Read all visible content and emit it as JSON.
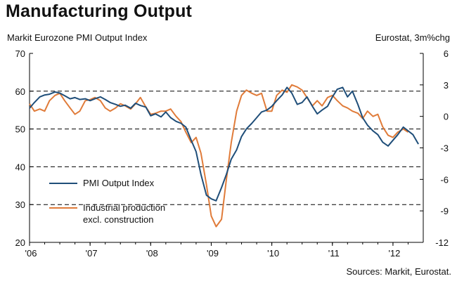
{
  "header": {
    "title": "Manufacturing Output",
    "left_axis_title": "Markit Eurozone PMI Output Index",
    "right_axis_title": "Eurostat, 3m%chg",
    "source": "Sources: Markit, Eurostat."
  },
  "colors": {
    "pmi": "#1f4e79",
    "industrial": "#e07b39",
    "axis": "#000000",
    "grid": "#000000"
  },
  "chart_data": {
    "type": "line",
    "x_ticks": [
      "'06",
      "'07",
      "'08",
      "'09",
      "'10",
      "'11",
      "'12"
    ],
    "x_range": [
      2006.0,
      2012.5
    ],
    "y_left": {
      "range": [
        20,
        70
      ],
      "ticks": [
        20,
        30,
        40,
        50,
        60,
        70
      ]
    },
    "y_right": {
      "range": [
        -12,
        6
      ],
      "ticks": [
        -12,
        -9,
        -6,
        -3,
        0,
        3,
        6
      ]
    },
    "gridlines_left": [
      30,
      40,
      50,
      60
    ],
    "legend": [
      {
        "key": "pmi",
        "lines": [
          "PMI Output Index"
        ]
      },
      {
        "key": "industrial",
        "lines": [
          "Industrial production",
          "excl. construction"
        ]
      }
    ],
    "series": [
      {
        "name": "PMI Output Index",
        "axis": "left",
        "points": [
          [
            2006.0,
            55.5
          ],
          [
            2006.08,
            57.0
          ],
          [
            2006.17,
            58.5
          ],
          [
            2006.25,
            59.0
          ],
          [
            2006.33,
            59.2
          ],
          [
            2006.42,
            59.8
          ],
          [
            2006.5,
            59.5
          ],
          [
            2006.58,
            58.8
          ],
          [
            2006.67,
            58.0
          ],
          [
            2006.75,
            58.3
          ],
          [
            2006.83,
            57.8
          ],
          [
            2006.92,
            58.0
          ],
          [
            2007.0,
            57.5
          ],
          [
            2007.08,
            58.0
          ],
          [
            2007.17,
            58.5
          ],
          [
            2007.25,
            57.8
          ],
          [
            2007.33,
            57.0
          ],
          [
            2007.42,
            56.5
          ],
          [
            2007.5,
            56.0
          ],
          [
            2007.58,
            56.3
          ],
          [
            2007.67,
            55.5
          ],
          [
            2007.75,
            56.8
          ],
          [
            2007.83,
            56.2
          ],
          [
            2007.92,
            55.8
          ],
          [
            2008.0,
            53.5
          ],
          [
            2008.08,
            54.0
          ],
          [
            2008.17,
            53.2
          ],
          [
            2008.25,
            54.5
          ],
          [
            2008.33,
            53.0
          ],
          [
            2008.42,
            52.0
          ],
          [
            2008.5,
            51.5
          ],
          [
            2008.58,
            50.5
          ],
          [
            2008.67,
            47.0
          ],
          [
            2008.75,
            44.0
          ],
          [
            2008.83,
            38.0
          ],
          [
            2008.92,
            32.5
          ],
          [
            2009.0,
            31.5
          ],
          [
            2009.08,
            31.0
          ],
          [
            2009.17,
            34.5
          ],
          [
            2009.25,
            38.0
          ],
          [
            2009.33,
            42.0
          ],
          [
            2009.42,
            44.5
          ],
          [
            2009.5,
            48.0
          ],
          [
            2009.58,
            50.0
          ],
          [
            2009.67,
            51.5
          ],
          [
            2009.75,
            53.0
          ],
          [
            2009.83,
            54.5
          ],
          [
            2009.92,
            55.0
          ],
          [
            2010.0,
            56.0
          ],
          [
            2010.08,
            57.5
          ],
          [
            2010.17,
            59.0
          ],
          [
            2010.25,
            61.0
          ],
          [
            2010.33,
            59.5
          ],
          [
            2010.42,
            56.5
          ],
          [
            2010.5,
            57.0
          ],
          [
            2010.58,
            58.5
          ],
          [
            2010.67,
            56.0
          ],
          [
            2010.75,
            54.0
          ],
          [
            2010.83,
            55.0
          ],
          [
            2010.92,
            56.0
          ],
          [
            2011.0,
            58.5
          ],
          [
            2011.08,
            60.5
          ],
          [
            2011.17,
            61.0
          ],
          [
            2011.25,
            58.5
          ],
          [
            2011.33,
            60.0
          ],
          [
            2011.42,
            56.5
          ],
          [
            2011.5,
            53.0
          ],
          [
            2011.58,
            51.0
          ],
          [
            2011.67,
            49.5
          ],
          [
            2011.75,
            48.5
          ],
          [
            2011.83,
            46.5
          ],
          [
            2011.92,
            45.5
          ],
          [
            2012.0,
            47.0
          ],
          [
            2012.08,
            48.5
          ],
          [
            2012.17,
            50.5
          ],
          [
            2012.25,
            49.5
          ],
          [
            2012.33,
            48.5
          ],
          [
            2012.42,
            46.0
          ]
        ]
      },
      {
        "name": "Industrial production excl. construction",
        "axis": "right",
        "points": [
          [
            2006.0,
            1.2
          ],
          [
            2006.08,
            0.5
          ],
          [
            2006.17,
            0.7
          ],
          [
            2006.25,
            0.5
          ],
          [
            2006.33,
            1.5
          ],
          [
            2006.42,
            2.0
          ],
          [
            2006.5,
            2.2
          ],
          [
            2006.58,
            1.5
          ],
          [
            2006.67,
            0.8
          ],
          [
            2006.75,
            0.2
          ],
          [
            2006.83,
            0.5
          ],
          [
            2006.92,
            1.5
          ],
          [
            2007.0,
            1.6
          ],
          [
            2007.08,
            1.8
          ],
          [
            2007.17,
            1.5
          ],
          [
            2007.25,
            0.8
          ],
          [
            2007.33,
            0.5
          ],
          [
            2007.42,
            0.8
          ],
          [
            2007.5,
            1.2
          ],
          [
            2007.58,
            1.0
          ],
          [
            2007.67,
            0.7
          ],
          [
            2007.75,
            1.2
          ],
          [
            2007.83,
            1.8
          ],
          [
            2007.92,
            0.9
          ],
          [
            2008.0,
            0.2
          ],
          [
            2008.08,
            0.3
          ],
          [
            2008.17,
            0.5
          ],
          [
            2008.25,
            0.5
          ],
          [
            2008.33,
            0.7
          ],
          [
            2008.42,
            0.0
          ],
          [
            2008.5,
            -0.5
          ],
          [
            2008.58,
            -1.5
          ],
          [
            2008.67,
            -2.5
          ],
          [
            2008.75,
            -2.0
          ],
          [
            2008.83,
            -3.5
          ],
          [
            2008.92,
            -6.5
          ],
          [
            2009.0,
            -9.5
          ],
          [
            2009.08,
            -10.5
          ],
          [
            2009.17,
            -9.8
          ],
          [
            2009.25,
            -6.0
          ],
          [
            2009.33,
            -2.5
          ],
          [
            2009.42,
            0.5
          ],
          [
            2009.5,
            2.0
          ],
          [
            2009.58,
            2.5
          ],
          [
            2009.67,
            2.2
          ],
          [
            2009.75,
            2.0
          ],
          [
            2009.83,
            2.2
          ],
          [
            2009.92,
            0.5
          ],
          [
            2010.0,
            0.5
          ],
          [
            2010.08,
            2.0
          ],
          [
            2010.17,
            2.5
          ],
          [
            2010.25,
            2.3
          ],
          [
            2010.33,
            3.0
          ],
          [
            2010.42,
            2.8
          ],
          [
            2010.5,
            2.5
          ],
          [
            2010.58,
            1.8
          ],
          [
            2010.67,
            1.0
          ],
          [
            2010.75,
            1.5
          ],
          [
            2010.83,
            1.0
          ],
          [
            2010.92,
            1.8
          ],
          [
            2011.0,
            2.0
          ],
          [
            2011.08,
            1.5
          ],
          [
            2011.17,
            1.0
          ],
          [
            2011.25,
            0.8
          ],
          [
            2011.33,
            0.5
          ],
          [
            2011.42,
            0.3
          ],
          [
            2011.5,
            -0.2
          ],
          [
            2011.58,
            0.5
          ],
          [
            2011.67,
            0.0
          ],
          [
            2011.75,
            0.2
          ],
          [
            2011.83,
            -1.0
          ],
          [
            2011.92,
            -1.8
          ],
          [
            2012.0,
            -2.0
          ],
          [
            2012.08,
            -1.5
          ],
          [
            2012.17,
            -1.2
          ],
          [
            2012.25,
            -1.5
          ]
        ]
      }
    ]
  }
}
